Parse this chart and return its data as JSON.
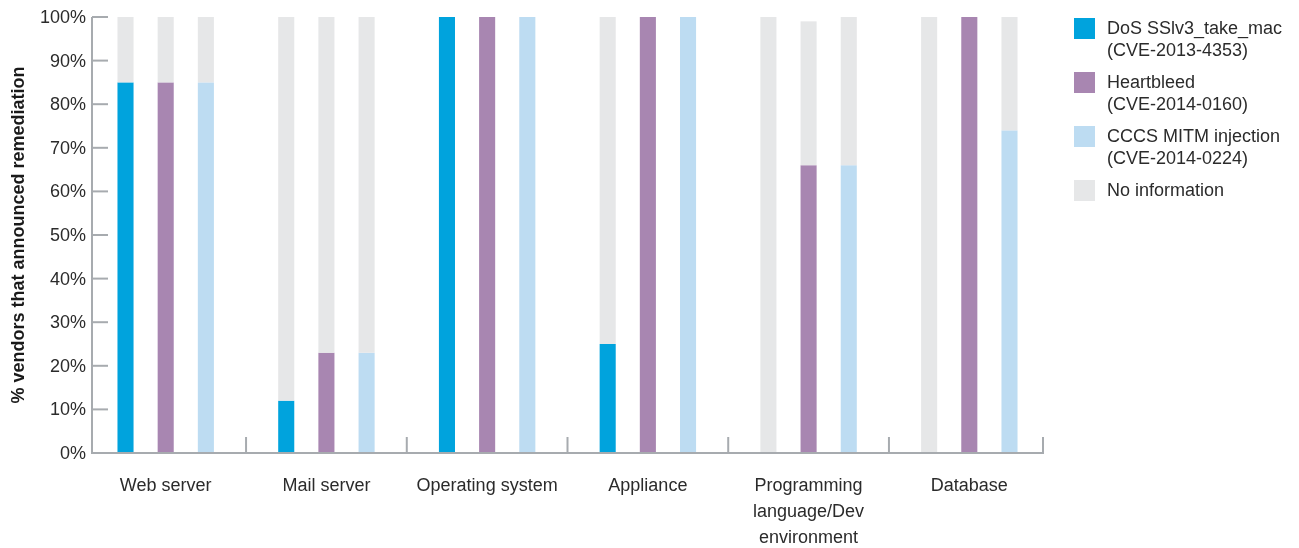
{
  "chart_data": {
    "type": "bar",
    "stacked": true,
    "ylabel": "% vendors that announced remediation",
    "categories": [
      null,
      "Web server",
      null,
      null,
      null,
      "Mail server",
      null,
      null,
      null,
      "Operating system",
      null,
      null,
      null,
      "Appliance",
      null,
      null,
      null,
      "Programming language/Dev environment",
      null,
      null,
      null,
      "Database",
      null
    ],
    "series": [
      {
        "name": "DoS SSlv3_take_mac (CVE-2013-4353)",
        "color": "#00a3dd",
        "values": [
          85,
          null,
          null,
          null,
          12,
          null,
          null,
          null,
          100,
          null,
          null,
          null,
          25,
          null,
          null,
          null,
          0,
          null,
          null,
          null,
          0,
          null,
          null
        ]
      },
      {
        "name": "Heartbleed (CVE-2014-0160)",
        "color": "#a886b1",
        "values": [
          null,
          85,
          null,
          null,
          null,
          23,
          null,
          null,
          null,
          100,
          null,
          null,
          null,
          100,
          null,
          null,
          null,
          66,
          null,
          null,
          null,
          100,
          null
        ]
      },
      {
        "name": "CCCS MITM injection (CVE-2014-0224)",
        "color": "#bddcf2",
        "values": [
          null,
          null,
          85,
          null,
          null,
          null,
          23,
          null,
          null,
          null,
          100,
          null,
          null,
          null,
          100,
          null,
          null,
          null,
          66,
          null,
          null,
          null,
          74
        ]
      },
      {
        "name": "No information",
        "color": "#e6e7e8",
        "values": [
          15,
          15,
          15,
          null,
          88,
          77,
          77,
          null,
          null,
          null,
          null,
          null,
          75,
          null,
          null,
          null,
          100,
          33,
          34,
          null,
          100,
          null,
          26
        ]
      }
    ],
    "ylim": [
      0,
      100
    ],
    "yticks": [
      {
        "value": 0,
        "label": "0%"
      },
      {
        "value": 10,
        "label": "10%"
      },
      {
        "value": 20,
        "label": "20%"
      },
      {
        "value": 30,
        "label": "30%"
      },
      {
        "value": 40,
        "label": "40%"
      },
      {
        "value": 50,
        "label": "50%"
      },
      {
        "value": 60,
        "label": "60%"
      },
      {
        "value": 70,
        "label": "70%"
      },
      {
        "value": 80,
        "label": "80%"
      },
      {
        "value": 90,
        "label": "90%"
      },
      {
        "value": 100,
        "label": "100%"
      }
    ],
    "legend": "right"
  }
}
